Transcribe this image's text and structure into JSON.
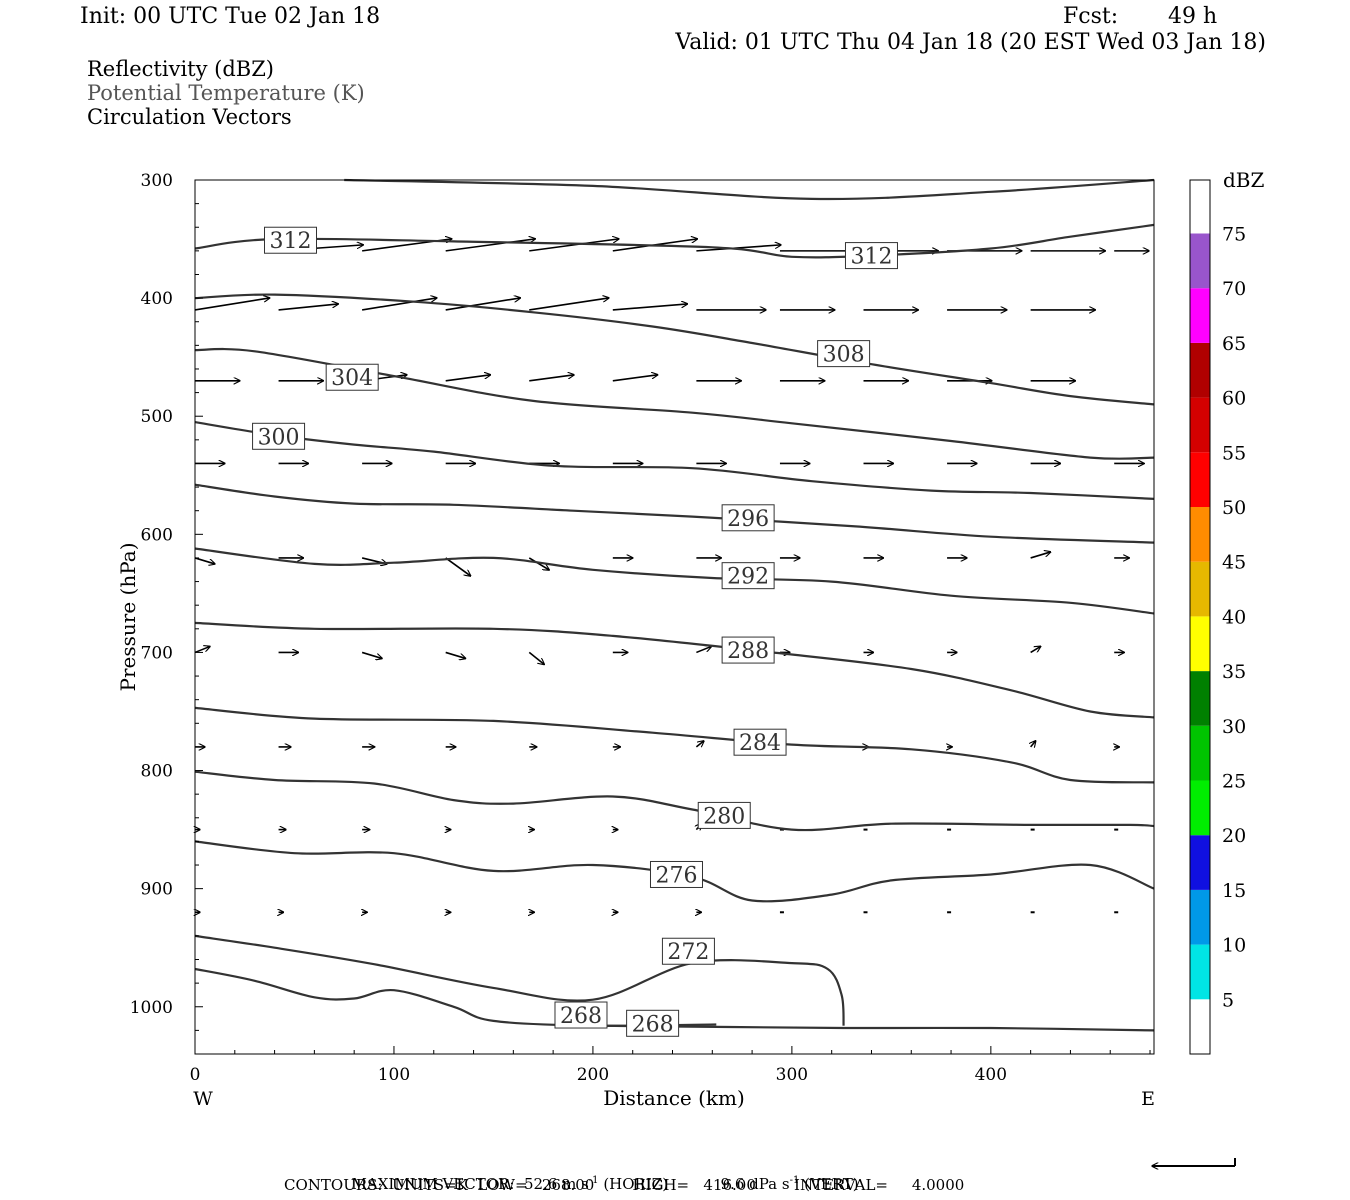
{
  "header": {
    "init": "Init: 00 UTC Tue 02 Jan 18",
    "fcst_label": "Fcst:",
    "fcst_value": "49 h",
    "valid": "Valid: 01 UTC Thu 04 Jan 18 (20 EST Wed 03 Jan 18)"
  },
  "legend": {
    "line1": "Reflectivity (dBZ)",
    "line2": "Potential Temperature (K)",
    "line3": "Circulation Vectors"
  },
  "chart_data": {
    "type": "line",
    "title": "",
    "xlabel": "Distance (km)",
    "ylabel": "Pressure (hPa)",
    "xlim": [
      0,
      482
    ],
    "ylim": [
      1040,
      300
    ],
    "x_ticks": [
      0,
      100,
      200,
      300,
      400
    ],
    "y_ticks": [
      300,
      400,
      500,
      600,
      700,
      800,
      900,
      1000
    ],
    "x_end_labels": {
      "left": "W",
      "right": "E"
    },
    "contour_color": "#333333",
    "isentropes": [
      {
        "name": "312",
        "label": "312",
        "points": [
          [
            0,
            358
          ],
          [
            40,
            350
          ],
          [
            130,
            352
          ],
          [
            260,
            357
          ],
          [
            300,
            365
          ],
          [
            340,
            364
          ],
          [
            400,
            358
          ],
          [
            440,
            348
          ],
          [
            482,
            338
          ]
        ]
      },
      {
        "name": "308",
        "label": "308",
        "points": [
          [
            0,
            400
          ],
          [
            40,
            397
          ],
          [
            110,
            403
          ],
          [
            170,
            412
          ],
          [
            230,
            424
          ],
          [
            280,
            438
          ],
          [
            340,
            456
          ],
          [
            400,
            472
          ],
          [
            440,
            483
          ],
          [
            482,
            490
          ]
        ]
      },
      {
        "name": "304",
        "label": "304",
        "points": [
          [
            0,
            444
          ],
          [
            30,
            445
          ],
          [
            100,
            466
          ],
          [
            170,
            487
          ],
          [
            250,
            497
          ],
          [
            300,
            506
          ],
          [
            380,
            521
          ],
          [
            450,
            535
          ],
          [
            482,
            535
          ]
        ]
      },
      {
        "name": "300",
        "label": "300",
        "points": [
          [
            0,
            505
          ],
          [
            40,
            516
          ],
          [
            80,
            524
          ],
          [
            120,
            530
          ],
          [
            180,
            542
          ],
          [
            250,
            544
          ],
          [
            310,
            555
          ],
          [
            370,
            563
          ],
          [
            420,
            565
          ],
          [
            482,
            570
          ]
        ]
      },
      {
        "name": "296",
        "label": "296",
        "points": [
          [
            0,
            558
          ],
          [
            40,
            568
          ],
          [
            80,
            574
          ],
          [
            130,
            575
          ],
          [
            190,
            580
          ],
          [
            250,
            585
          ],
          [
            330,
            593
          ],
          [
            400,
            602
          ],
          [
            482,
            607
          ]
        ]
      },
      {
        "name": "292",
        "label": "292",
        "points": [
          [
            0,
            612
          ],
          [
            60,
            625
          ],
          [
            100,
            624
          ],
          [
            150,
            620
          ],
          [
            200,
            630
          ],
          [
            260,
            637
          ],
          [
            320,
            640
          ],
          [
            380,
            652
          ],
          [
            440,
            658
          ],
          [
            482,
            667
          ]
        ]
      },
      {
        "name": "288",
        "label": "288",
        "points": [
          [
            0,
            675
          ],
          [
            60,
            680
          ],
          [
            150,
            680
          ],
          [
            210,
            686
          ],
          [
            290,
            700
          ],
          [
            360,
            714
          ],
          [
            410,
            732
          ],
          [
            450,
            750
          ],
          [
            482,
            755
          ]
        ]
      },
      {
        "name": "284",
        "label": "284",
        "points": [
          [
            0,
            747
          ],
          [
            60,
            756
          ],
          [
            150,
            758
          ],
          [
            230,
            768
          ],
          [
            300,
            778
          ],
          [
            360,
            782
          ],
          [
            410,
            793
          ],
          [
            440,
            808
          ],
          [
            482,
            810
          ]
        ]
      },
      {
        "name": "280",
        "label": "280",
        "points": [
          [
            0,
            801
          ],
          [
            40,
            808
          ],
          [
            90,
            811
          ],
          [
            130,
            825
          ],
          [
            160,
            828
          ],
          [
            210,
            822
          ],
          [
            250,
            833
          ],
          [
            300,
            850
          ],
          [
            350,
            845
          ],
          [
            420,
            846
          ],
          [
            470,
            846
          ],
          [
            482,
            847
          ]
        ]
      },
      {
        "name": "276",
        "label": "276",
        "points": [
          [
            0,
            860
          ],
          [
            50,
            870
          ],
          [
            100,
            870
          ],
          [
            150,
            885
          ],
          [
            200,
            880
          ],
          [
            250,
            890
          ],
          [
            280,
            910
          ],
          [
            320,
            905
          ],
          [
            350,
            893
          ],
          [
            400,
            888
          ],
          [
            450,
            880
          ],
          [
            482,
            900
          ]
        ]
      },
      {
        "name": "272",
        "label": "272",
        "points": [
          [
            0,
            940
          ],
          [
            40,
            950
          ],
          [
            90,
            964
          ],
          [
            150,
            984
          ],
          [
            200,
            994
          ],
          [
            250,
            963
          ],
          [
            300,
            963
          ],
          [
            318,
            968
          ],
          [
            325,
            990
          ],
          [
            326,
            1016
          ]
        ]
      },
      {
        "name": "268",
        "label": "268",
        "points": [
          [
            0,
            968
          ],
          [
            30,
            978
          ],
          [
            60,
            992
          ],
          [
            80,
            993
          ],
          [
            100,
            986
          ],
          [
            130,
            1000
          ],
          [
            150,
            1012
          ],
          [
            200,
            1016
          ],
          [
            262,
            1015
          ]
        ]
      },
      {
        "name": "268-surface",
        "label": "268",
        "points": [
          [
            200,
            1016
          ],
          [
            326,
            1018
          ],
          [
            400,
            1018
          ],
          [
            482,
            1020
          ]
        ]
      }
    ],
    "vector_field": {
      "x": [
        0,
        42,
        84,
        126,
        168,
        210,
        252,
        294,
        336,
        378,
        420,
        462
      ],
      "levels": [
        {
          "p": 360,
          "u": [
            0,
            34,
            36,
            36,
            36,
            34,
            34,
            32,
            30,
            30,
            30,
            14
          ],
          "w": [
            0,
            -1,
            -2,
            -2,
            -2,
            -2,
            -1,
            0,
            0,
            0,
            0,
            0
          ]
        },
        {
          "p": 410,
          "u": [
            30,
            24,
            30,
            30,
            32,
            30,
            28,
            22,
            22,
            24,
            26,
            0
          ],
          "w": [
            -2,
            -1,
            -2,
            -2,
            -2,
            -1,
            0,
            0,
            0,
            0,
            0,
            0
          ]
        },
        {
          "p": 470,
          "u": [
            18,
            18,
            18,
            18,
            18,
            18,
            18,
            18,
            18,
            18,
            18,
            0
          ],
          "w": [
            0,
            0,
            -1,
            -1,
            -1,
            -1,
            0,
            0,
            0,
            0,
            0,
            0
          ]
        },
        {
          "p": 540,
          "u": [
            12,
            12,
            12,
            12,
            12,
            12,
            12,
            12,
            12,
            12,
            12,
            12
          ],
          "w": [
            0,
            0,
            0,
            0,
            0,
            0,
            0,
            0,
            0,
            0,
            0,
            0
          ]
        },
        {
          "p": 620,
          "u": [
            8,
            10,
            10,
            10,
            8,
            8,
            10,
            8,
            8,
            8,
            8,
            6
          ],
          "w": [
            1,
            0,
            1,
            3,
            2,
            0,
            0,
            0,
            0,
            0,
            -1,
            0
          ]
        },
        {
          "p": 700,
          "u": [
            6,
            8,
            8,
            8,
            6,
            6,
            6,
            4,
            4,
            4,
            4,
            4
          ],
          "w": [
            -1,
            0,
            1,
            1,
            2,
            0,
            -1,
            0,
            0,
            0,
            -1,
            0
          ]
        },
        {
          "p": 780,
          "u": [
            4,
            5,
            5,
            4,
            3,
            3,
            3,
            2,
            2,
            2,
            2,
            2
          ],
          "w": [
            0,
            0,
            0,
            0,
            0,
            0,
            -1,
            0,
            0,
            0,
            -1,
            0
          ]
        },
        {
          "p": 850,
          "u": [
            2,
            3,
            3,
            2,
            2,
            2,
            2,
            1,
            1,
            1,
            1,
            1
          ],
          "w": [
            0,
            0,
            0,
            0,
            0,
            0,
            -1,
            0,
            0,
            0,
            0,
            0
          ]
        },
        {
          "p": 920,
          "u": [
            2,
            2,
            2,
            2,
            2,
            2,
            2,
            1,
            1,
            1,
            1,
            1
          ],
          "w": [
            0,
            0,
            0,
            0,
            0,
            0,
            0,
            0,
            0,
            0,
            0,
            0
          ]
        }
      ]
    },
    "colorbar": {
      "title": "dBZ",
      "labels": [
        "5",
        "10",
        "15",
        "20",
        "25",
        "30",
        "35",
        "40",
        "45",
        "50",
        "55",
        "60",
        "65",
        "70",
        "75"
      ],
      "colors": [
        "#00e5e5",
        "#0099e8",
        "#1010e0",
        "#00ee00",
        "#00c400",
        "#008000",
        "#ffff00",
        "#e6b800",
        "#ff8c00",
        "#ff0000",
        "#d40000",
        "#b00000",
        "#ff00ff",
        "#9955cc"
      ]
    }
  },
  "reference_vector": {
    "direction": "left"
  },
  "footer": {
    "max_prefix": "MAXIMUM VECTOR:",
    "max_horiz_value": "52.6 m s",
    "max_horiz_exp": "-1",
    "max_horiz_tag": "(HORIZ)",
    "max_vert_value": "9.6 dPa s",
    "max_vert_exp": "-1",
    "max_vert_tag": "(VERT)",
    "contours": "CONTOURS:  UNITS=K  LOW=   268.00        HIGH=   416.00        INTERVAL=     4.0000"
  }
}
